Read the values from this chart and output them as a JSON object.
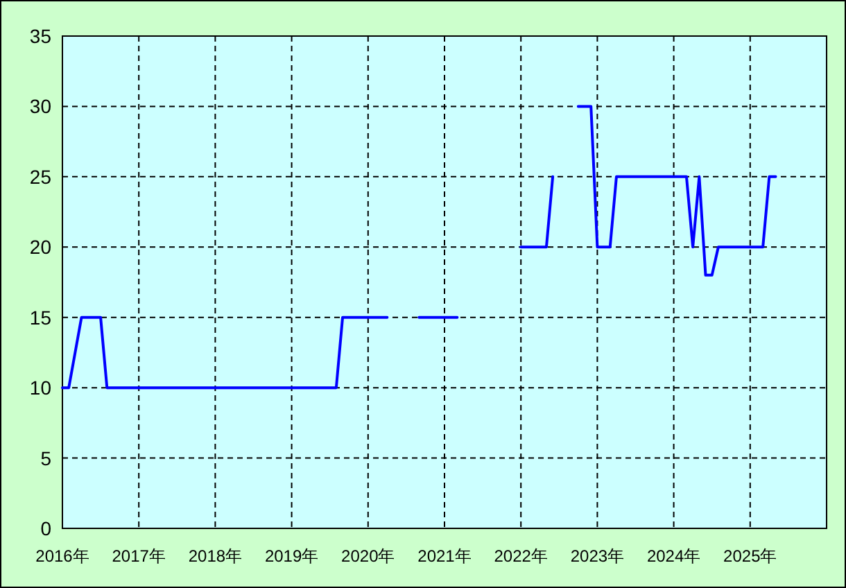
{
  "chart_data": {
    "type": "line",
    "series": [
      {
        "color": "#0000ff",
        "x": [
          "2016-01",
          "2016-02",
          "2016-04",
          "2016-07",
          "2016-08",
          "2019-08",
          "2019-09",
          "2020-04"
        ],
        "values": [
          10,
          10,
          15,
          15,
          10,
          10,
          15,
          15
        ]
      },
      {
        "color": "#0000ff",
        "x": [
          "2020-09",
          "2021-03"
        ],
        "values": [
          15,
          15
        ]
      },
      {
        "color": "#0000ff",
        "x": [
          "2022-01",
          "2022-05",
          "2022-06"
        ],
        "values": [
          20,
          20,
          25
        ]
      },
      {
        "color": "#0000ff",
        "x": [
          "2022-10",
          "2022-12",
          "2023-01",
          "2023-03",
          "2023-04",
          "2024-03",
          "2024-04",
          "2024-05",
          "2024-06",
          "2024-07",
          "2024-08",
          "2025-03",
          "2025-04",
          "2025-05"
        ],
        "values": [
          30,
          30,
          20,
          20,
          25,
          25,
          20,
          25,
          18,
          18,
          20,
          20,
          25,
          25
        ]
      }
    ],
    "xlim": [
      "2016",
      "2026"
    ],
    "xticks": [
      {
        "value": "2016",
        "label": "2016年"
      },
      {
        "value": "2017",
        "label": "2017年"
      },
      {
        "value": "2018",
        "label": "2018年"
      },
      {
        "value": "2019",
        "label": "2019年"
      },
      {
        "value": "2020",
        "label": "2020年"
      },
      {
        "value": "2021",
        "label": "2021年"
      },
      {
        "value": "2022",
        "label": "2022年"
      },
      {
        "value": "2023",
        "label": "2023年"
      },
      {
        "value": "2024",
        "label": "2024年"
      },
      {
        "value": "2025",
        "label": "2025年"
      }
    ],
    "ylim": [
      0,
      35
    ],
    "yticks": [
      0,
      5,
      10,
      15,
      20,
      25,
      30,
      35
    ],
    "grid": true,
    "line_style": "solid",
    "marker": "none"
  }
}
